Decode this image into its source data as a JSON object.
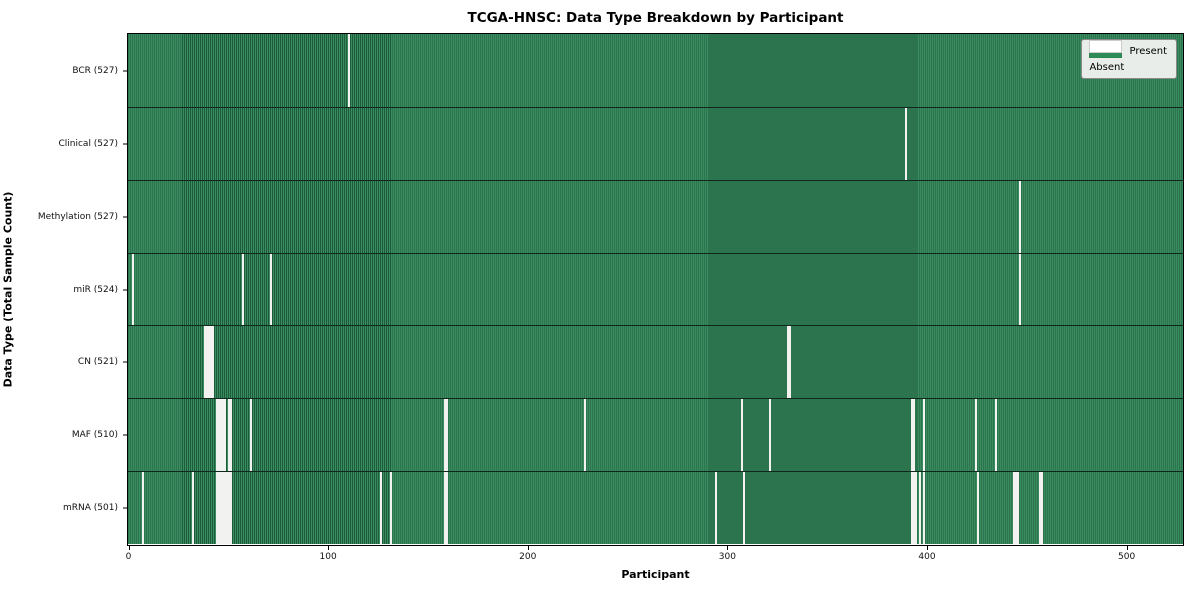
{
  "chart_data": {
    "type": "heatmap",
    "title": "TCGA-HNSC: Data Type Breakdown by Participant",
    "xlabel": "Participant",
    "ylabel": "Data Type (Total Sample Count)",
    "x_ticks": [
      0,
      100,
      200,
      300,
      400,
      500
    ],
    "xlim": [
      0,
      528
    ],
    "n_participants": 528,
    "grid": false,
    "legend_position": "upper right",
    "legend": {
      "present_label": "Present",
      "absent_label": "Absent"
    },
    "colors": {
      "present": "#2e8b57",
      "present_stripe_dark": "#1d5c3b",
      "absent": "#f2f2f0",
      "row_separator": "#10281c",
      "legend_background": "#e9ede9"
    },
    "rows": [
      {
        "name": "BCR",
        "label": "BCR (527)",
        "count": 527,
        "absent": [
          110
        ]
      },
      {
        "name": "Clinical",
        "label": "Clinical (527)",
        "count": 527,
        "absent": [
          389
        ]
      },
      {
        "name": "Methylation",
        "label": "Methylation (527)",
        "count": 527,
        "absent": [
          446
        ]
      },
      {
        "name": "miR",
        "label": "miR (524)",
        "count": 524,
        "absent": [
          2,
          57,
          71,
          446
        ]
      },
      {
        "name": "CN",
        "label": "CN (521)",
        "count": 521,
        "absent": [
          38,
          39,
          40,
          41,
          42,
          330,
          331
        ]
      },
      {
        "name": "MAF",
        "label": "MAF (510)",
        "count": 510,
        "absent": [
          44,
          45,
          46,
          47,
          48,
          50,
          51,
          61,
          158,
          159,
          228,
          307,
          321,
          392,
          393,
          398,
          424,
          434
        ]
      },
      {
        "name": "mRNA",
        "label": "mRNA (501)",
        "count": 501,
        "absent": [
          7,
          32,
          44,
          45,
          46,
          47,
          48,
          49,
          50,
          51,
          126,
          131,
          158,
          159,
          294,
          308,
          392,
          393,
          394,
          396,
          398,
          425,
          443,
          444,
          445,
          456,
          457
        ]
      }
    ]
  }
}
